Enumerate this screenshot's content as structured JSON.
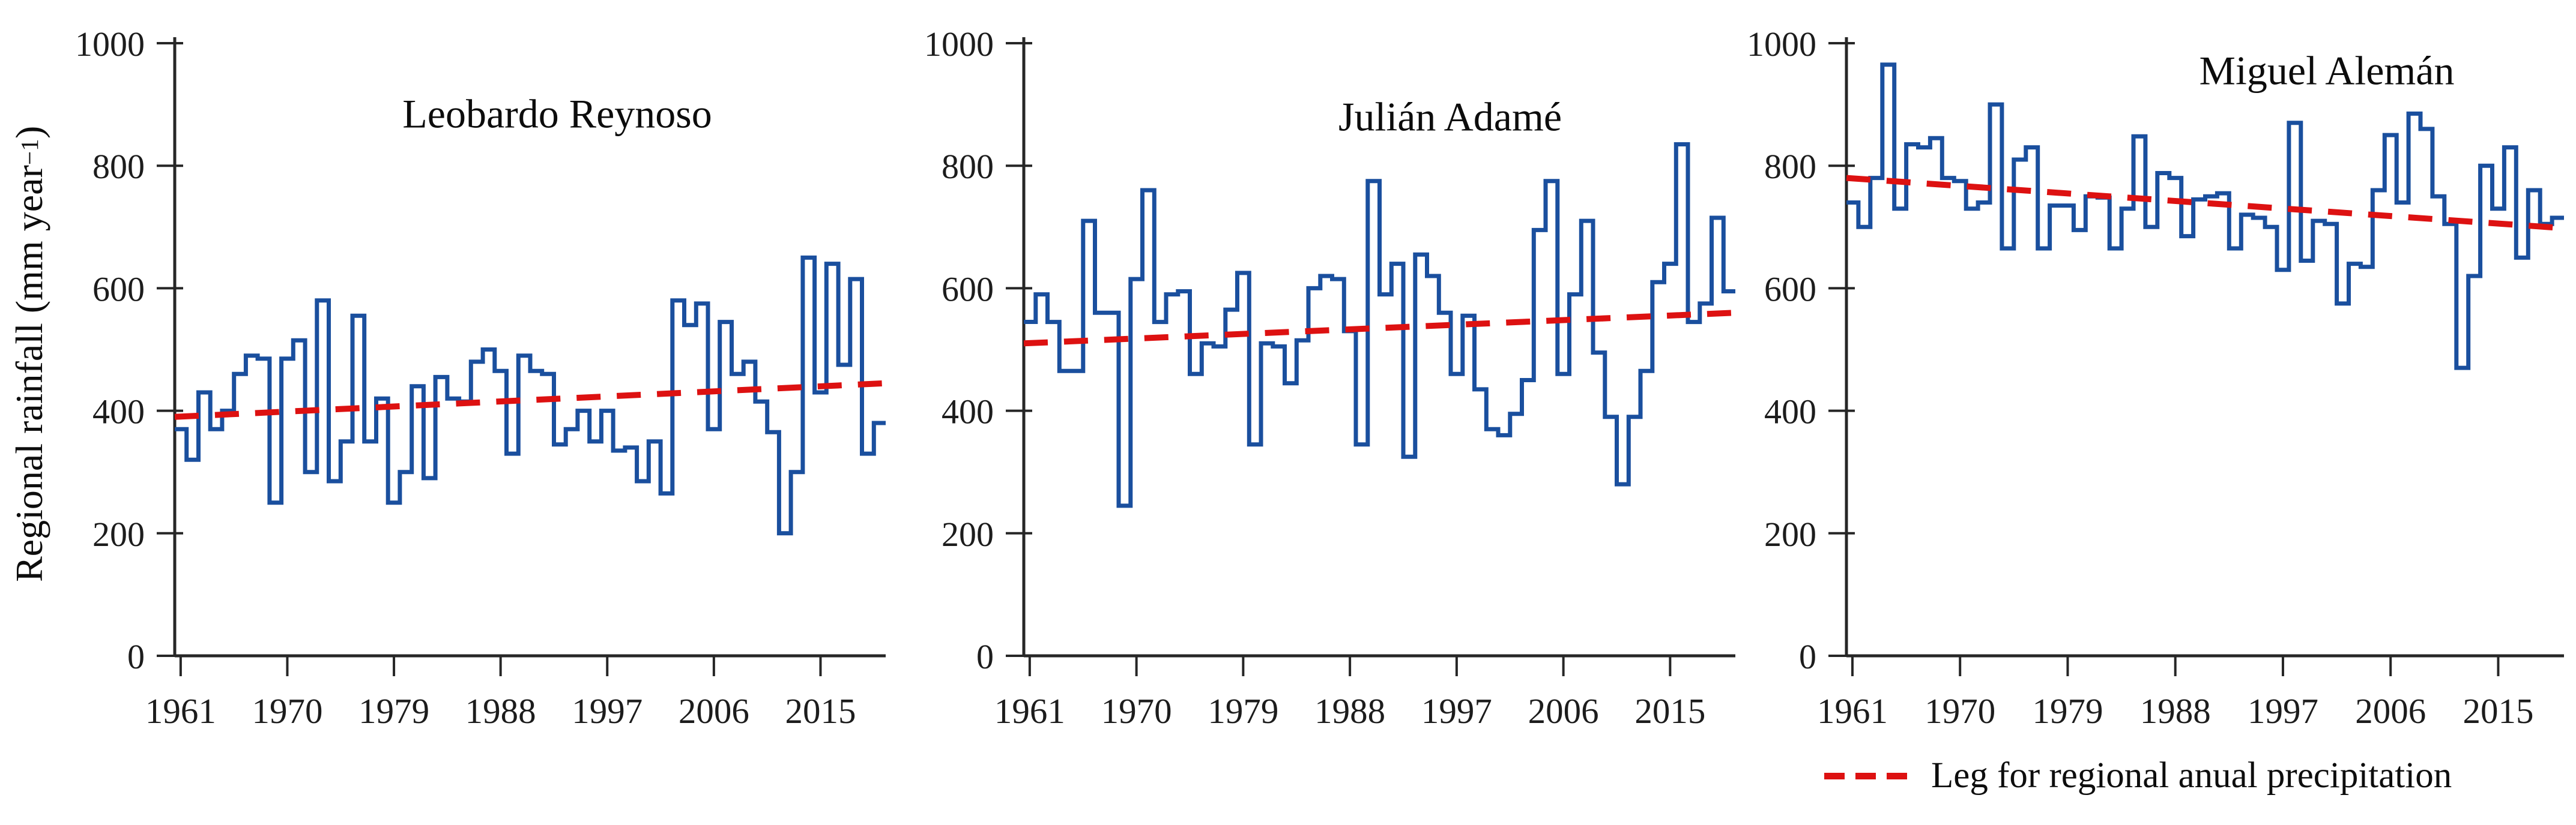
{
  "y_axis_label": {
    "main": "Regional rainfall (mm year ",
    "superscript": "−1",
    "close": ")"
  },
  "legend": {
    "label": "Leg for regional anual precipitation",
    "line_color": "#dd1111",
    "line_style": "dashed"
  },
  "colors": {
    "series_blue": "#1a4f9e",
    "trend_red": "#dd1111",
    "axis_black": "#262626"
  },
  "chart_data": [
    {
      "type": "line",
      "subtype": "step",
      "title": "Leobardo Reynoso",
      "ylabel": "Regional rainfall (mm year −1)",
      "xlabel": "",
      "ylim": [
        0,
        1000
      ],
      "grid": false,
      "x_start_year": 1961,
      "x_end_year": 2020,
      "x_tick_labels": [
        1961,
        1970,
        1979,
        1988,
        1997,
        2006,
        2015
      ],
      "y_tick_labels": [
        0,
        200,
        400,
        600,
        800,
        1000
      ],
      "series_name": "annual rainfall",
      "values": [
        370,
        320,
        430,
        370,
        400,
        460,
        490,
        485,
        250,
        485,
        515,
        300,
        580,
        285,
        350,
        555,
        350,
        420,
        250,
        300,
        440,
        290,
        455,
        420,
        415,
        480,
        500,
        465,
        330,
        490,
        465,
        460,
        345,
        370,
        400,
        350,
        400,
        335,
        340,
        285,
        350,
        265,
        580,
        540,
        575,
        370,
        545,
        460,
        480,
        415,
        365,
        200,
        300,
        650,
        430,
        640,
        475,
        615,
        330,
        380
      ],
      "trend": {
        "name": "linear trend",
        "x": [
          1961,
          2020
        ],
        "y": [
          390,
          445
        ]
      }
    },
    {
      "type": "line",
      "subtype": "step",
      "title": "Julián Adamé",
      "ylabel": "Regional rainfall (mm year −1)",
      "xlabel": "",
      "ylim": [
        0,
        1000
      ],
      "grid": false,
      "x_start_year": 1961,
      "x_end_year": 2020,
      "x_tick_labels": [
        1961,
        1970,
        1979,
        1988,
        1997,
        2006,
        2015
      ],
      "y_tick_labels": [
        0,
        200,
        400,
        600,
        800,
        1000
      ],
      "series_name": "annual rainfall",
      "values": [
        545,
        590,
        545,
        465,
        465,
        710,
        560,
        560,
        245,
        615,
        760,
        545,
        590,
        595,
        460,
        510,
        505,
        565,
        625,
        345,
        510,
        505,
        445,
        515,
        600,
        620,
        615,
        530,
        345,
        775,
        590,
        640,
        325,
        655,
        620,
        560,
        460,
        555,
        435,
        370,
        360,
        395,
        450,
        695,
        775,
        460,
        590,
        710,
        495,
        390,
        280,
        390,
        465,
        610,
        640,
        835,
        545,
        575,
        715,
        595
      ],
      "trend": {
        "name": "linear trend",
        "x": [
          1961,
          2020
        ],
        "y": [
          510,
          560
        ]
      }
    },
    {
      "type": "line",
      "subtype": "step",
      "title": "Miguel Alemán",
      "ylabel": "Regional rainfall (mm year −1)",
      "xlabel": "",
      "ylim": [
        0,
        1000
      ],
      "grid": false,
      "x_start_year": 1961,
      "x_end_year": 2020,
      "x_tick_labels": [
        1961,
        1970,
        1979,
        1988,
        1997,
        2006,
        2015
      ],
      "y_tick_labels": [
        0,
        200,
        400,
        600,
        800,
        1000
      ],
      "series_name": "annual rainfall",
      "values": [
        740,
        700,
        780,
        965,
        730,
        835,
        830,
        845,
        780,
        775,
        730,
        740,
        900,
        665,
        810,
        830,
        665,
        735,
        735,
        695,
        750,
        748,
        665,
        730,
        848,
        700,
        788,
        780,
        685,
        745,
        750,
        755,
        665,
        720,
        715,
        700,
        630,
        870,
        645,
        710,
        705,
        575,
        640,
        635,
        760,
        850,
        740,
        885,
        860,
        750,
        705,
        470,
        620,
        800,
        730,
        830,
        650,
        760,
        705,
        715
      ],
      "trend": {
        "name": "linear trend",
        "x": [
          1961,
          2020
        ],
        "y": [
          780,
          698
        ]
      }
    }
  ]
}
